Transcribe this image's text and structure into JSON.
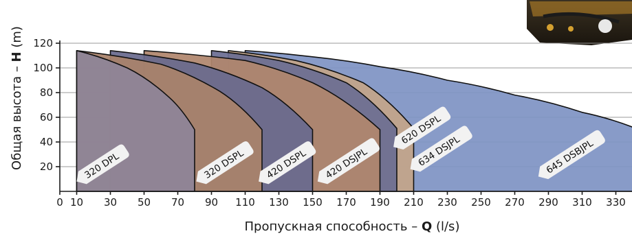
{
  "chart_data": {
    "type": "area",
    "xlabel": {
      "prefix": "Пропускная способность – ",
      "symbol": "Q",
      "unit": " (l/s)"
    },
    "ylabel": {
      "prefix": "Общая высота – ",
      "symbol": "H",
      "unit": " (m)"
    },
    "xlim": [
      0,
      340
    ],
    "ylim": [
      0,
      120
    ],
    "x_ticks": [
      0,
      10,
      30,
      50,
      70,
      90,
      110,
      130,
      150,
      170,
      190,
      210,
      230,
      250,
      270,
      290,
      310,
      330
    ],
    "y_ticks": [
      20,
      40,
      60,
      80,
      100,
      120
    ],
    "y_gridlines": [
      20,
      40,
      60,
      80,
      100,
      120
    ],
    "series": [
      {
        "name": "645 DSBJPL",
        "color": "#7f93c4",
        "x": [
          110,
          150,
          190,
          230,
          270,
          310,
          340
        ],
        "y": [
          114,
          109,
          101,
          90,
          78,
          64,
          52
        ]
      },
      {
        "name": "634 DSJPL",
        "color": "#c3a58a",
        "x": [
          100,
          140,
          180,
          210
        ],
        "y": [
          114,
          106,
          88,
          51
        ]
      },
      {
        "name": "620 DSPL",
        "color": "#6c6e92",
        "x": [
          90,
          130,
          170,
          200
        ],
        "y": [
          114,
          106,
          88,
          51
        ]
      },
      {
        "name": "420 DSJPL",
        "color": "#b0876e",
        "x": [
          50,
          110,
          150,
          190
        ],
        "y": [
          114,
          106,
          88,
          50
        ]
      },
      {
        "name": "420 DSPL",
        "color": "#696b8e",
        "x": [
          30,
          80,
          120,
          150
        ],
        "y": [
          114,
          104,
          84,
          50
        ]
      },
      {
        "name": "320 DSPL",
        "color": "#a9826b",
        "x": [
          10,
          60,
          95,
          120
        ],
        "y": [
          114,
          103,
          81,
          50
        ]
      },
      {
        "name": "320 DPL",
        "color": "#8e8498",
        "x": [
          10,
          40,
          65,
          80
        ],
        "y": [
          114,
          100,
          76,
          50
        ]
      }
    ]
  }
}
